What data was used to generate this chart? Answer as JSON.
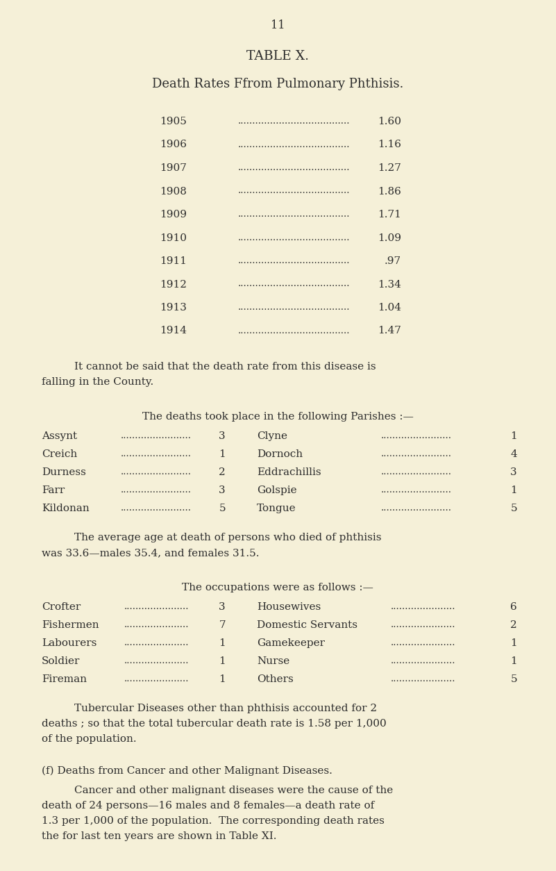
{
  "page_number": "11",
  "title1": "TABLE X.",
  "title2": "Death Rates Ffrom Pulmonary Phthisis.",
  "years": [
    "1905",
    "1906",
    "1907",
    "1908",
    "1909",
    "1910",
    "1911",
    "1912",
    "1913",
    "1914"
  ],
  "rates": [
    "1.60",
    "1.16",
    "1.27",
    "1.86",
    "1.71",
    "1.09",
    ".97",
    "1.34",
    "1.04",
    "1.47"
  ],
  "para1_line1": "It cannot be said that the death rate from this disease is",
  "para1_line2": "falling in the County.",
  "parishes_header": "The deaths took place in the following Parishes :—",
  "parishes_left": [
    [
      "Assynt",
      "3"
    ],
    [
      "Creich",
      "1"
    ],
    [
      "Durness",
      "2"
    ],
    [
      "Farr",
      "3"
    ],
    [
      "Kildonan",
      "5"
    ]
  ],
  "parishes_right": [
    [
      "Clyne",
      "1"
    ],
    [
      "Dornoch",
      "4"
    ],
    [
      "Eddrachillis",
      "3"
    ],
    [
      "Golspie",
      "1"
    ],
    [
      "Tongue",
      "5"
    ]
  ],
  "avg_age_line1": "The average age at death of persons who died of phthisis",
  "avg_age_line2": "was 33.6—males 35.4, and females 31.5.",
  "occupations_header": "The occupations were as follows :—",
  "occupations_left": [
    [
      "Crofter",
      "3"
    ],
    [
      "Fishermen",
      "7"
    ],
    [
      "Labourers",
      "1"
    ],
    [
      "Soldier",
      "1"
    ],
    [
      "Fireman",
      "1"
    ]
  ],
  "occupations_right": [
    [
      "Housewives",
      "6"
    ],
    [
      "Domestic Servants",
      "2"
    ],
    [
      "Gamekeeper",
      "1"
    ],
    [
      "Nurse",
      "1"
    ],
    [
      "Others",
      "5"
    ]
  ],
  "tubercular_line1": "Tubercular Diseases other than phthisis accounted for 2",
  "tubercular_line2": "deaths ; so that the total tubercular death rate is 1.58 per 1,000",
  "tubercular_line3": "of the population.",
  "cancer_header": "(f) Deaths from Cancer and other Malignant Diseases.",
  "cancer_line1": "Cancer and other malignant diseases were the cause of the",
  "cancer_line2": "death of 24 persons—16 males and 8 females—a death rate of",
  "cancer_line3": "1.3 per 1,000 of the population.  The corresponding death rates",
  "cancer_line4": "the for last ten years are shown in Table XI.",
  "bg_color": "#f5f0d8",
  "text_color": "#2c2c2c",
  "dots_color": "#2c2c2c"
}
